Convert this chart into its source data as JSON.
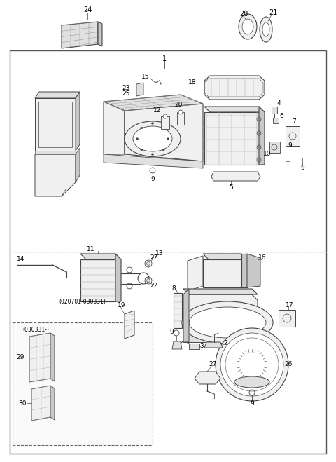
{
  "bg_color": "#ffffff",
  "line_color": "#444444",
  "fill_light": "#f0f0f0",
  "fill_mid": "#e0e0e0",
  "fill_dark": "#c8c8c8",
  "fig_width": 4.8,
  "fig_height": 6.59,
  "dpi": 100
}
